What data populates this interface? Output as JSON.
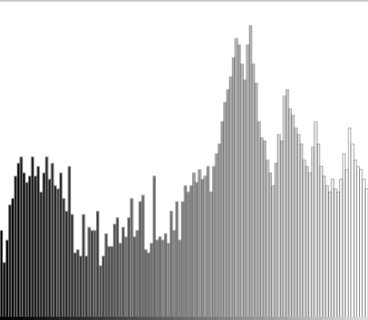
{
  "chart_data": {
    "type": "bar",
    "title": "",
    "xlabel": "",
    "ylabel": "",
    "grid": false,
    "legend": "none",
    "xlim": [
      0,
      255
    ],
    "ylim": [
      0,
      100
    ],
    "colors": {
      "background": "#ffffff",
      "bar_start": "#000000",
      "bar_end": "#ffffff",
      "top_border": "#c8c8c8",
      "bottom_band_start": "#000000",
      "bottom_band_end": "#d8d8d8"
    },
    "values": [
      28,
      18,
      25,
      36,
      38,
      45,
      49,
      51,
      46,
      43,
      45,
      51,
      45,
      48,
      40,
      46,
      51,
      44,
      49,
      42,
      41,
      46,
      38,
      34,
      48,
      33,
      21,
      22,
      20,
      33,
      20,
      29,
      28,
      28,
      34,
      17,
      20,
      27,
      23,
      23,
      30,
      32,
      24,
      29,
      26,
      32,
      38,
      26,
      28,
      37,
      39,
      22,
      21,
      24,
      45,
      25,
      26,
      25,
      27,
      24,
      34,
      28,
      37,
      25,
      37,
      42,
      40,
      42,
      46,
      43,
      47,
      44,
      45,
      48,
      40,
      48,
      52,
      55,
      62,
      68,
      72,
      76,
      82,
      88,
      86,
      80,
      75,
      86,
      92,
      80,
      74,
      62,
      57,
      56,
      50,
      46,
      42,
      49,
      58,
      56,
      70,
      72,
      66,
      64,
      60,
      58,
      55,
      50,
      48,
      46,
      54,
      62,
      55,
      48,
      45,
      42,
      40,
      44,
      41,
      40,
      44,
      52,
      47,
      60,
      55,
      50,
      48,
      47,
      44,
      41
    ]
  }
}
